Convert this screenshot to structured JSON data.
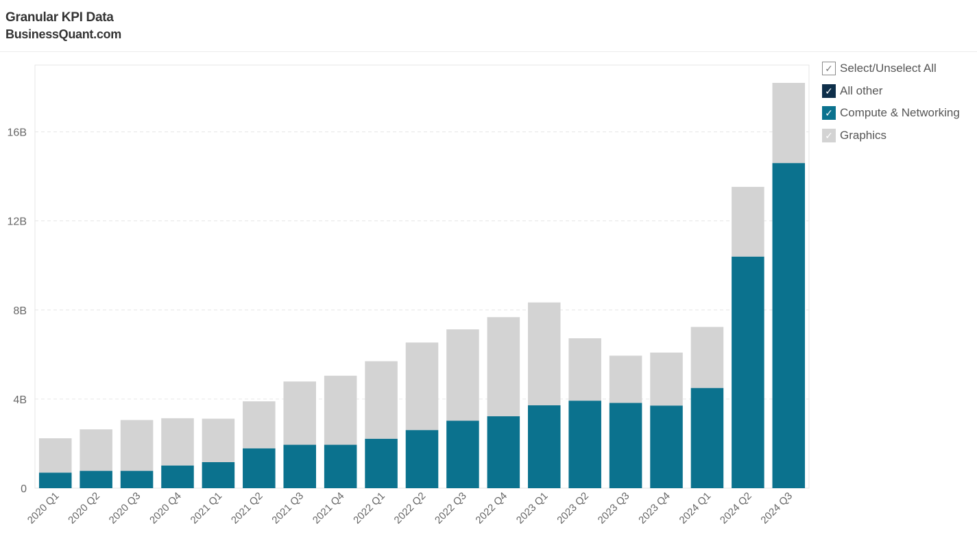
{
  "header": {
    "title": "Granular KPI Data",
    "subtitle": "BusinessQuant.com"
  },
  "legend": {
    "items": [
      {
        "label": "Select/Unselect All",
        "color": "#ffffff",
        "border": "#8a8a8a",
        "check_color": "#777777",
        "checked": true
      },
      {
        "label": "All other",
        "color": "#0e2f4a",
        "border": "#0e2f4a",
        "check_color": "#ffffff",
        "checked": true
      },
      {
        "label": "Compute & Networking",
        "color": "#0b728e",
        "border": "#0b728e",
        "check_color": "#ffffff",
        "checked": true
      },
      {
        "label": "Graphics",
        "color": "#d3d3d3",
        "border": "#d3d3d3",
        "check_color": "#ffffff",
        "checked": true
      }
    ]
  },
  "chart_data": {
    "type": "bar",
    "stacked": true,
    "categories": [
      "2020 Q1",
      "2020 Q2",
      "2020 Q3",
      "2020 Q4",
      "2021 Q1",
      "2021 Q2",
      "2021 Q3",
      "2021 Q4",
      "2022 Q1",
      "2022 Q2",
      "2022 Q3",
      "2022 Q4",
      "2023 Q1",
      "2023 Q2",
      "2023 Q3",
      "2023 Q4",
      "2024 Q1",
      "2024 Q2",
      "2024 Q3"
    ],
    "series": [
      {
        "name": "Compute & Networking",
        "color": "#0b728e",
        "values": [
          0.7,
          0.78,
          0.78,
          1.02,
          1.17,
          1.79,
          1.95,
          1.95,
          2.22,
          2.61,
          3.03,
          3.23,
          3.72,
          3.93,
          3.83,
          3.71,
          4.5,
          10.4,
          14.6
        ]
      },
      {
        "name": "Graphics",
        "color": "#d3d3d3",
        "values": [
          1.54,
          1.86,
          2.28,
          2.12,
          1.95,
          2.11,
          2.84,
          3.1,
          3.48,
          3.93,
          4.1,
          4.45,
          4.62,
          2.8,
          2.12,
          2.38,
          2.74,
          3.13,
          3.6
        ]
      }
    ],
    "y_ticks": [
      "0",
      "4B",
      "8B",
      "12B",
      "16B"
    ],
    "y_tick_values": [
      0,
      4,
      8,
      12,
      16
    ],
    "ylim": [
      0,
      19
    ],
    "grid": true,
    "legend_position": "right"
  }
}
